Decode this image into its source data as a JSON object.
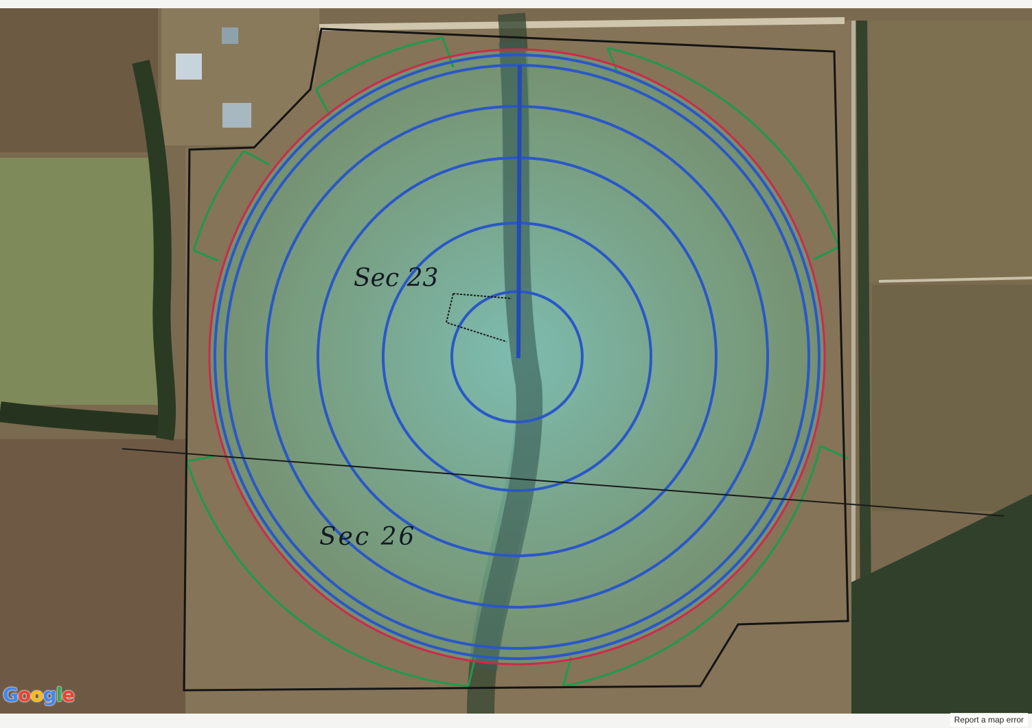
{
  "map": {
    "labels": {
      "sec23": "Sec 23",
      "sec26": "Sec 26"
    },
    "logo": "Google",
    "report_link": "Report a map error"
  },
  "icons": [
    "google-logo"
  ],
  "colors": {
    "pivot_rings": "#2a57c8",
    "pivot_outer_ring": "#d0284a",
    "corner_zones": "#1f9a4c",
    "boundary": "#141414",
    "section_line": "#1a1a1a"
  }
}
